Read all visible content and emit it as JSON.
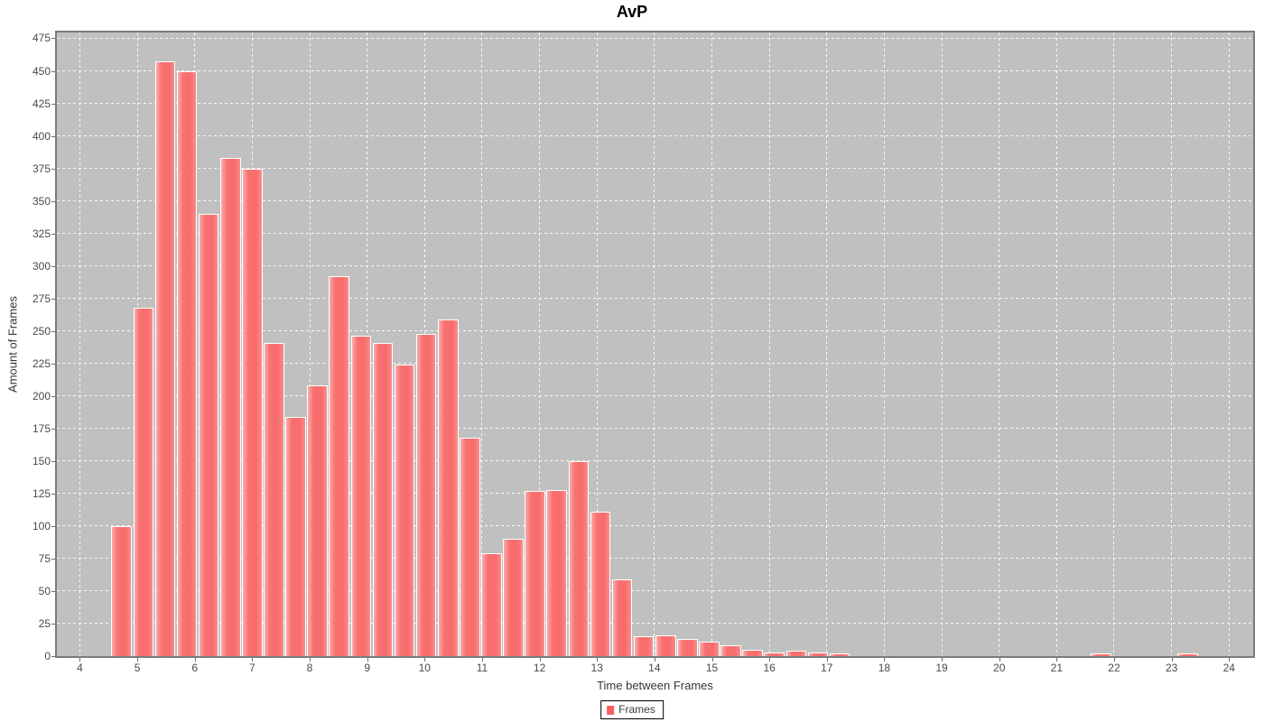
{
  "title": "AvP",
  "legend": {
    "items": [
      {
        "label": "Frames",
        "color": "#f85f5f"
      }
    ]
  },
  "colors": {
    "page_bg": "#ffffff",
    "plot_bg": "#c0c0c0",
    "plot_border": "#7b7b7b",
    "grid": "#ffffff",
    "bar_fill": "#f87070",
    "bar_outline": "#ffffff",
    "tick_label": "#4a4a4a",
    "axis_label": "#363636",
    "title_color": "#000000"
  },
  "chart_data": {
    "type": "bar",
    "subtype": "histogram",
    "title": "AvP",
    "xlabel": "Time between Frames",
    "ylabel": "Amount of Frames",
    "xlim": [
      3.6,
      24.42
    ],
    "ylim": [
      0,
      479.5
    ],
    "x_ticks": [
      4,
      5,
      6,
      7,
      8,
      9,
      10,
      11,
      12,
      13,
      14,
      15,
      16,
      17,
      18,
      19,
      20,
      21,
      22,
      23,
      24
    ],
    "y_ticks": [
      0,
      25,
      50,
      75,
      100,
      125,
      150,
      175,
      200,
      225,
      250,
      275,
      300,
      325,
      350,
      375,
      400,
      425,
      450,
      475
    ],
    "grid": true,
    "legend_position": "bottom",
    "series_name": "Frames",
    "bin_start": 4.55,
    "bin_width": 0.3787,
    "counts": [
      100,
      268,
      457,
      450,
      340,
      383,
      375,
      241,
      184,
      208,
      292,
      246,
      241,
      224,
      248,
      259,
      168,
      79,
      90,
      127,
      128,
      150,
      111,
      59,
      15,
      16,
      13,
      11,
      8,
      5,
      3,
      4,
      3,
      2,
      0,
      0,
      0,
      0,
      0,
      0,
      0,
      0,
      0,
      0,
      0,
      2,
      0,
      0,
      0,
      2
    ]
  }
}
